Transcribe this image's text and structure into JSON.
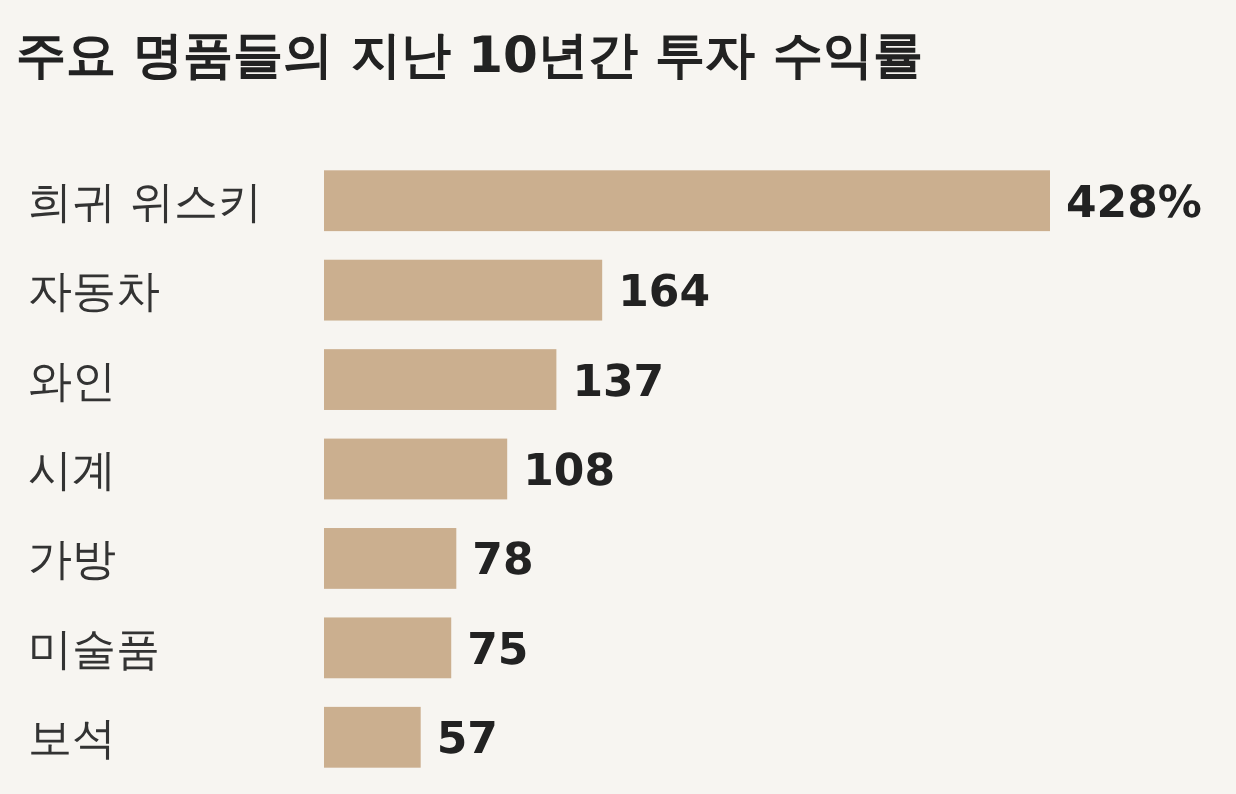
{
  "chart_data": {
    "type": "bar",
    "orientation": "horizontal",
    "title": "주요 명품들의 지난 10년간 투자 수익률",
    "categories": [
      "희귀 위스키",
      "자동차",
      "와인",
      "시계",
      "가방",
      "미술품",
      "보석"
    ],
    "values": [
      428,
      164,
      137,
      108,
      78,
      75,
      57
    ],
    "value_labels": [
      "428%",
      "164",
      "137",
      "108",
      "78",
      "75",
      "57"
    ],
    "color": "#cbaf8f"
  }
}
